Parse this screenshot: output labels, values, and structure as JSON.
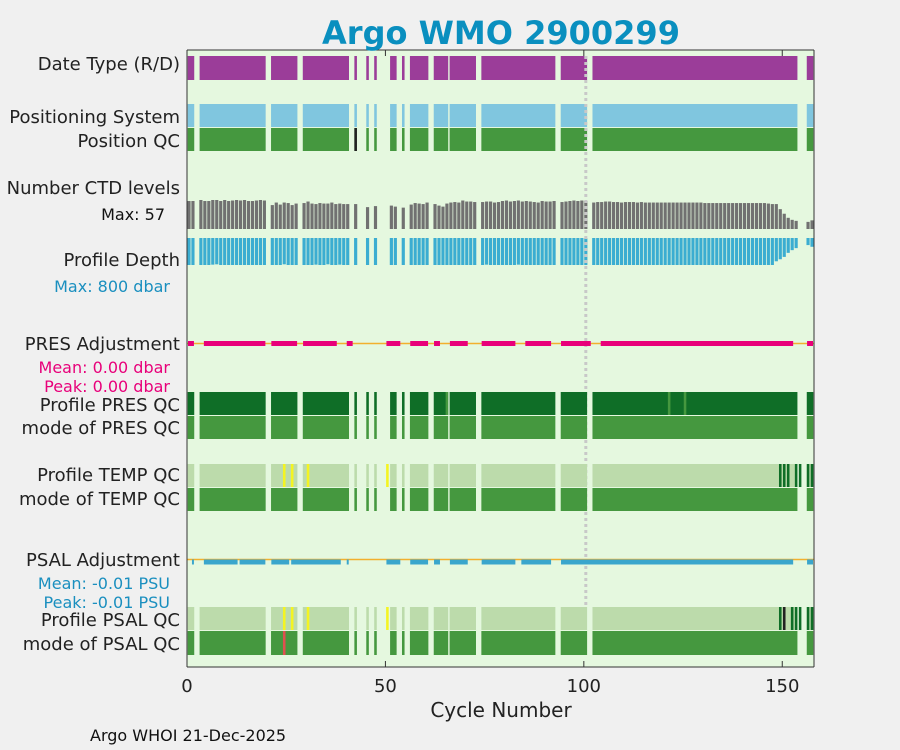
{
  "colors": {
    "figure_bg": "#f0f0f0",
    "axes_bg": "#e5f8df",
    "title": "#0a8fbf",
    "mode_R": "#9b3d99",
    "pos_system": "#80c6df",
    "qc_good": "#45983f",
    "qc_dark": "#0f6e27",
    "qc_light": "#bcdbab",
    "qc_yellow": "#f4f421",
    "qc_red": "#e05050",
    "qc_black": "#222222",
    "ctd_bar": "#717171",
    "depth_bar": "#3badd1",
    "pres_adj": "#e8007a",
    "psal_adj": "#3aa6cc",
    "adj_line": "#f2b02e",
    "cycle100_line": "#c8c8c8",
    "max_ctd_text": "#111111",
    "max_depth_text": "#1a8fbf",
    "pres_stats_text": "#e8007a",
    "psal_stats_text": "#1a8fbf"
  },
  "chart_data": {
    "type": "bar",
    "title": "Argo WMO 2900299",
    "xlabel": "Cycle Number",
    "ylabel": "",
    "xlim": [
      0,
      158
    ],
    "x_ticks": [
      0,
      50,
      100,
      150
    ],
    "x_tick_labels": [
      "0",
      "50",
      "100",
      "150"
    ],
    "highlight_cycle": 100,
    "present_ranges": [
      [
        0,
        1
      ],
      [
        3,
        19
      ],
      [
        21,
        27
      ],
      [
        29,
        40
      ],
      [
        42,
        42
      ],
      [
        45,
        45
      ],
      [
        47,
        47
      ],
      [
        51,
        52
      ],
      [
        54,
        54
      ],
      [
        56,
        60
      ],
      [
        62,
        65
      ],
      [
        66,
        72
      ],
      [
        74,
        92
      ],
      [
        94,
        100
      ],
      [
        102,
        153
      ],
      [
        156,
        157
      ]
    ],
    "rows": {
      "date_type": "Date Type (R/D)",
      "pos_system": "Positioning System",
      "pos_qc": "Position QC",
      "ctd_levels": "Number CTD levels",
      "profile_depth": "Profile Depth",
      "pres_adjustment": "PRES Adjustment",
      "profile_pres_qc": "Profile PRES QC",
      "mode_pres_qc": "mode of PRES QC",
      "profile_temp_qc": "Profile TEMP QC",
      "mode_temp_qc": "mode of TEMP QC",
      "psal_adjustment": "PSAL Adjustment",
      "profile_psal_qc": "Profile PSAL QC",
      "mode_psal_qc": "mode of PSAL QC"
    },
    "ctd_max": "Max: 57",
    "depth_max": "Max:  800 dbar",
    "pres_mean": "Mean: 0.00 dbar",
    "pres_peak": "Peak: 0.00 dbar",
    "psal_mean": "Mean: -0.01 PSU",
    "psal_peak": "Peak: -0.01 PSU",
    "ctd_levels_series": [
      [
        0,
        55,
        "short"
      ],
      [
        1,
        55
      ],
      [
        3,
        57
      ],
      [
        4,
        55
      ],
      [
        5,
        55
      ],
      [
        6,
        57
      ],
      [
        7,
        57
      ],
      [
        8,
        55
      ],
      [
        9,
        57
      ],
      [
        10,
        55
      ],
      [
        11,
        56
      ],
      [
        12,
        57
      ],
      [
        13,
        56
      ],
      [
        14,
        57
      ],
      [
        15,
        55
      ],
      [
        16,
        55
      ],
      [
        17,
        56
      ],
      [
        18,
        57
      ],
      [
        19,
        56
      ],
      [
        21,
        47
      ],
      [
        22,
        52
      ],
      [
        23,
        48
      ],
      [
        24,
        52
      ],
      [
        25,
        51
      ],
      [
        26,
        47
      ],
      [
        27,
        50
      ],
      [
        29,
        51
      ],
      [
        30,
        54
      ],
      [
        31,
        50
      ],
      [
        32,
        49
      ],
      [
        33,
        51
      ],
      [
        34,
        50
      ],
      [
        35,
        50
      ],
      [
        36,
        52
      ],
      [
        37,
        49
      ],
      [
        38,
        50
      ],
      [
        39,
        49
      ],
      [
        40,
        49
      ],
      [
        42,
        49
      ],
      [
        45,
        43
      ],
      [
        47,
        45
      ],
      [
        51,
        46
      ],
      [
        52,
        44
      ],
      [
        54,
        42
      ],
      [
        56,
        48
      ],
      [
        57,
        51
      ],
      [
        58,
        50
      ],
      [
        59,
        49
      ],
      [
        60,
        52
      ],
      [
        62,
        49
      ],
      [
        63,
        46
      ],
      [
        64,
        44
      ],
      [
        65,
        50
      ],
      [
        66,
        52
      ],
      [
        67,
        53
      ],
      [
        68,
        52
      ],
      [
        69,
        56
      ],
      [
        70,
        54
      ],
      [
        71,
        54
      ],
      [
        72,
        53
      ],
      [
        74,
        53
      ],
      [
        75,
        54
      ],
      [
        76,
        54
      ],
      [
        77,
        52
      ],
      [
        78,
        53
      ],
      [
        79,
        55
      ],
      [
        80,
        56
      ],
      [
        81,
        54
      ],
      [
        82,
        55
      ],
      [
        83,
        56
      ],
      [
        84,
        54
      ],
      [
        85,
        55
      ],
      [
        86,
        54
      ],
      [
        87,
        53
      ],
      [
        88,
        52
      ],
      [
        89,
        55
      ],
      [
        90,
        54
      ],
      [
        91,
        54
      ],
      [
        92,
        55
      ],
      [
        94,
        53
      ],
      [
        95,
        54
      ],
      [
        96,
        55
      ],
      [
        97,
        56
      ],
      [
        98,
        55
      ],
      [
        99,
        56
      ],
      [
        100,
        55
      ],
      [
        102,
        52
      ],
      [
        103,
        53
      ],
      [
        104,
        53
      ],
      [
        105,
        54
      ],
      [
        106,
        54
      ],
      [
        107,
        53
      ],
      [
        108,
        53
      ],
      [
        109,
        52
      ],
      [
        110,
        53
      ],
      [
        111,
        53
      ],
      [
        112,
        53
      ],
      [
        113,
        52
      ],
      [
        114,
        53
      ],
      [
        115,
        52
      ],
      [
        116,
        52
      ],
      [
        117,
        52
      ],
      [
        118,
        52
      ],
      [
        119,
        52
      ],
      [
        120,
        52
      ],
      [
        121,
        52
      ],
      [
        122,
        52
      ],
      [
        123,
        52
      ],
      [
        124,
        52
      ],
      [
        125,
        52
      ],
      [
        126,
        52
      ],
      [
        127,
        52
      ],
      [
        128,
        52
      ],
      [
        129,
        52
      ],
      [
        130,
        51
      ],
      [
        131,
        51
      ],
      [
        132,
        51
      ],
      [
        133,
        51
      ],
      [
        134,
        51
      ],
      [
        135,
        51
      ],
      [
        136,
        51
      ],
      [
        137,
        51
      ],
      [
        138,
        51
      ],
      [
        139,
        51
      ],
      [
        140,
        51
      ],
      [
        141,
        51
      ],
      [
        142,
        51
      ],
      [
        143,
        51
      ],
      [
        144,
        51
      ],
      [
        145,
        51
      ],
      [
        146,
        50
      ],
      [
        147,
        49
      ],
      [
        148,
        49
      ],
      [
        149,
        39
      ],
      [
        150,
        30
      ],
      [
        151,
        22
      ],
      [
        152,
        18
      ],
      [
        153,
        16
      ],
      [
        156,
        14
      ],
      [
        157,
        17
      ]
    ],
    "depth_series": [
      [
        0,
        800
      ],
      [
        1,
        800
      ],
      [
        3,
        800
      ],
      [
        4,
        800
      ],
      [
        5,
        800
      ],
      [
        6,
        790
      ],
      [
        7,
        780
      ],
      [
        8,
        800
      ],
      [
        9,
        800
      ],
      [
        10,
        800
      ],
      [
        11,
        800
      ],
      [
        12,
        800
      ],
      [
        13,
        800
      ],
      [
        14,
        800
      ],
      [
        15,
        800
      ],
      [
        16,
        800
      ],
      [
        17,
        800
      ],
      [
        18,
        800
      ],
      [
        19,
        800
      ],
      [
        21,
        800
      ],
      [
        22,
        800
      ],
      [
        23,
        800
      ],
      [
        24,
        780
      ],
      [
        25,
        800
      ],
      [
        26,
        800
      ],
      [
        27,
        800
      ],
      [
        29,
        800
      ],
      [
        30,
        800
      ],
      [
        31,
        800
      ],
      [
        32,
        790
      ],
      [
        33,
        800
      ],
      [
        34,
        800
      ],
      [
        35,
        780
      ],
      [
        36,
        800
      ],
      [
        37,
        800
      ],
      [
        38,
        790
      ],
      [
        39,
        800
      ],
      [
        40,
        800
      ],
      [
        42,
        800
      ],
      [
        45,
        800
      ],
      [
        47,
        800
      ],
      [
        51,
        800
      ],
      [
        52,
        800
      ],
      [
        54,
        800
      ],
      [
        56,
        800
      ],
      [
        57,
        800
      ],
      [
        58,
        800
      ],
      [
        59,
        800
      ],
      [
        60,
        800
      ],
      [
        62,
        800
      ],
      [
        63,
        800
      ],
      [
        64,
        800
      ],
      [
        65,
        800
      ],
      [
        66,
        800
      ],
      [
        67,
        800
      ],
      [
        68,
        800
      ],
      [
        69,
        800
      ],
      [
        70,
        800
      ],
      [
        71,
        800
      ],
      [
        72,
        800
      ],
      [
        74,
        800
      ],
      [
        75,
        790
      ],
      [
        76,
        800
      ],
      [
        77,
        800
      ],
      [
        78,
        800
      ],
      [
        79,
        800
      ],
      [
        80,
        800
      ],
      [
        81,
        800
      ],
      [
        82,
        800
      ],
      [
        83,
        790
      ],
      [
        84,
        800
      ],
      [
        85,
        800
      ],
      [
        86,
        800
      ],
      [
        87,
        800
      ],
      [
        88,
        800
      ],
      [
        89,
        800
      ],
      [
        90,
        800
      ],
      [
        91,
        800
      ],
      [
        92,
        800
      ],
      [
        94,
        800
      ],
      [
        95,
        800
      ],
      [
        96,
        800
      ],
      [
        97,
        800
      ],
      [
        98,
        800
      ],
      [
        99,
        800
      ],
      [
        100,
        800
      ],
      [
        102,
        800
      ],
      [
        103,
        800
      ],
      [
        104,
        800
      ],
      [
        105,
        800
      ],
      [
        106,
        800
      ],
      [
        107,
        800
      ],
      [
        108,
        800
      ],
      [
        109,
        800
      ],
      [
        110,
        800
      ],
      [
        111,
        800
      ],
      [
        112,
        800
      ],
      [
        113,
        800
      ],
      [
        114,
        800
      ],
      [
        115,
        800
      ],
      [
        116,
        800
      ],
      [
        117,
        800
      ],
      [
        118,
        800
      ],
      [
        119,
        800
      ],
      [
        120,
        800
      ],
      [
        121,
        800
      ],
      [
        122,
        800
      ],
      [
        123,
        800
      ],
      [
        124,
        800
      ],
      [
        125,
        800
      ],
      [
        126,
        800
      ],
      [
        127,
        800
      ],
      [
        128,
        800
      ],
      [
        129,
        800
      ],
      [
        130,
        800
      ],
      [
        131,
        800
      ],
      [
        132,
        800
      ],
      [
        133,
        800
      ],
      [
        134,
        800
      ],
      [
        135,
        800
      ],
      [
        136,
        800
      ],
      [
        137,
        800
      ],
      [
        138,
        800
      ],
      [
        139,
        800
      ],
      [
        140,
        800
      ],
      [
        141,
        800
      ],
      [
        142,
        800
      ],
      [
        143,
        800
      ],
      [
        144,
        800
      ],
      [
        145,
        800
      ],
      [
        146,
        800
      ],
      [
        147,
        800
      ],
      [
        148,
        690
      ],
      [
        149,
        630
      ],
      [
        150,
        560
      ],
      [
        151,
        440
      ],
      [
        152,
        360
      ],
      [
        153,
        300
      ],
      [
        156,
        210
      ],
      [
        157,
        260
      ]
    ],
    "pres_adjust_dashes": [
      [
        0,
        1
      ],
      [
        4,
        19
      ],
      [
        21,
        27
      ],
      [
        29,
        37
      ],
      [
        40,
        41
      ],
      [
        50,
        53
      ],
      [
        56,
        60
      ],
      [
        62,
        63
      ],
      [
        66,
        70
      ],
      [
        74,
        82
      ],
      [
        85,
        91
      ],
      [
        94,
        101
      ],
      [
        104,
        152
      ],
      [
        156,
        157
      ]
    ],
    "psal_adjust_segments": [
      [
        1,
        1
      ],
      [
        4,
        12
      ],
      [
        13,
        19
      ],
      [
        21,
        25
      ],
      [
        26,
        29
      ],
      [
        29,
        38
      ],
      [
        40,
        40
      ],
      [
        50,
        53
      ],
      [
        56,
        60
      ],
      [
        62,
        63
      ],
      [
        66,
        70
      ],
      [
        74,
        82
      ],
      [
        84,
        91
      ],
      [
        94,
        152
      ],
      [
        156,
        157
      ]
    ],
    "pres_qc_light_cycles": [
      65,
      121,
      125
    ],
    "temp_qc_yellow": [
      24,
      26,
      30,
      50
    ],
    "temp_qc_dark": [
      149,
      150,
      151,
      153,
      154,
      156,
      157
    ],
    "psal_qc_yellow": [
      24,
      26,
      30,
      50
    ],
    "psal_qc_dark": [
      149,
      152,
      153,
      154,
      156,
      157
    ],
    "psal_qc_black": [
      150
    ],
    "psal_qc_red": [
      24
    ],
    "pos_qc_black": [
      42
    ]
  },
  "footer": {
    "credit": "Argo WHOI 21-Dec-2025"
  }
}
